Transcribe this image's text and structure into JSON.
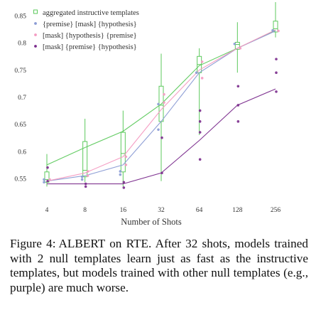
{
  "chart_data": {
    "type": "scatter",
    "title": "",
    "xlabel": "Number of Shots",
    "ylabel": "",
    "x_scale": "log2",
    "x_ticks": [
      "4",
      "8",
      "16",
      "32",
      "64",
      "128",
      "256"
    ],
    "y_ticks": [
      "0.55",
      "0.6",
      "0.65",
      "0.7",
      "0.75",
      "0.8",
      "0.85"
    ],
    "ylim": [
      0.525,
      0.858
    ],
    "grid": false,
    "legend_position": "top-left",
    "series": [
      {
        "name": "aggregated instructive templates",
        "color": "#5cc95c",
        "style": "box",
        "boxes": [
          {
            "x": 4,
            "low": 0.535,
            "q1": 0.543,
            "median": 0.548,
            "q3": 0.562,
            "high": 0.595
          },
          {
            "x": 8,
            "low": 0.543,
            "q1": 0.553,
            "median": 0.565,
            "q3": 0.618,
            "high": 0.66
          },
          {
            "x": 16,
            "low": 0.535,
            "q1": 0.562,
            "median": 0.596,
            "q3": 0.635,
            "high": 0.675
          },
          {
            "x": 32,
            "low": 0.545,
            "q1": 0.655,
            "median": 0.685,
            "q3": 0.72,
            "high": 0.78
          },
          {
            "x": 64,
            "low": 0.63,
            "q1": 0.745,
            "median": 0.76,
            "q3": 0.775,
            "high": 0.79
          },
          {
            "x": 128,
            "low": 0.745,
            "q1": 0.788,
            "median": 0.797,
            "q3": 0.801,
            "high": 0.838
          },
          {
            "x": 256,
            "low": 0.81,
            "q1": 0.82,
            "median": 0.826,
            "q3": 0.84,
            "high": 0.875
          }
        ],
        "trend": [
          {
            "x": 4,
            "y": 0.575
          },
          {
            "x": 8,
            "y": 0.607
          },
          {
            "x": 16,
            "y": 0.637
          },
          {
            "x": 32,
            "y": 0.687
          },
          {
            "x": 64,
            "y": 0.758
          },
          {
            "x": 128,
            "y": 0.79
          },
          {
            "x": 256,
            "y": 0.823
          }
        ]
      },
      {
        "name": "{premise} [mask] {hypothesis}",
        "color": "#8a9bd4",
        "style": "points",
        "points": [
          {
            "x": 4,
            "y": 0.548
          },
          {
            "x": 4,
            "y": 0.543
          },
          {
            "x": 8,
            "y": 0.553
          },
          {
            "x": 8,
            "y": 0.548
          },
          {
            "x": 16,
            "y": 0.563
          },
          {
            "x": 16,
            "y": 0.557
          },
          {
            "x": 32,
            "y": 0.64
          },
          {
            "x": 32,
            "y": 0.687
          },
          {
            "x": 64,
            "y": 0.745
          },
          {
            "x": 128,
            "y": 0.798
          },
          {
            "x": 256,
            "y": 0.823
          }
        ],
        "trend": [
          {
            "x": 4,
            "y": 0.545
          },
          {
            "x": 8,
            "y": 0.555
          },
          {
            "x": 16,
            "y": 0.575
          },
          {
            "x": 32,
            "y": 0.655
          },
          {
            "x": 64,
            "y": 0.745
          },
          {
            "x": 128,
            "y": 0.79
          },
          {
            "x": 256,
            "y": 0.822
          }
        ]
      },
      {
        "name": "[mask] {hypothesis} {premise}",
        "color": "#f49ac1",
        "style": "points",
        "points": [
          {
            "x": 4,
            "y": 0.548
          },
          {
            "x": 8,
            "y": 0.555
          },
          {
            "x": 8,
            "y": 0.563
          },
          {
            "x": 16,
            "y": 0.59
          },
          {
            "x": 16,
            "y": 0.575
          },
          {
            "x": 32,
            "y": 0.69
          },
          {
            "x": 32,
            "y": 0.705
          },
          {
            "x": 64,
            "y": 0.735
          },
          {
            "x": 64,
            "y": 0.765
          },
          {
            "x": 128,
            "y": 0.79
          },
          {
            "x": 256,
            "y": 0.822
          }
        ],
        "trend": [
          {
            "x": 4,
            "y": 0.545
          },
          {
            "x": 8,
            "y": 0.56
          },
          {
            "x": 16,
            "y": 0.59
          },
          {
            "x": 32,
            "y": 0.677
          },
          {
            "x": 64,
            "y": 0.75
          },
          {
            "x": 128,
            "y": 0.79
          },
          {
            "x": 256,
            "y": 0.824
          }
        ]
      },
      {
        "name": "[mask] {premise} {hypothesis}",
        "color": "#7a2b8c",
        "style": "points",
        "points": [
          {
            "x": 4,
            "y": 0.57
          },
          {
            "x": 4,
            "y": 0.545
          },
          {
            "x": 8,
            "y": 0.54
          },
          {
            "x": 8,
            "y": 0.535
          },
          {
            "x": 16,
            "y": 0.543
          },
          {
            "x": 16,
            "y": 0.533
          },
          {
            "x": 32,
            "y": 0.56
          },
          {
            "x": 32,
            "y": 0.625
          },
          {
            "x": 64,
            "y": 0.675
          },
          {
            "x": 64,
            "y": 0.655
          },
          {
            "x": 64,
            "y": 0.635
          },
          {
            "x": 64,
            "y": 0.585
          },
          {
            "x": 128,
            "y": 0.72
          },
          {
            "x": 128,
            "y": 0.685
          },
          {
            "x": 128,
            "y": 0.655
          },
          {
            "x": 256,
            "y": 0.77
          },
          {
            "x": 256,
            "y": 0.745
          },
          {
            "x": 256,
            "y": 0.71
          }
        ],
        "trend": [
          {
            "x": 4,
            "y": 0.54
          },
          {
            "x": 8,
            "y": 0.54
          },
          {
            "x": 16,
            "y": 0.54
          },
          {
            "x": 32,
            "y": 0.56
          },
          {
            "x": 64,
            "y": 0.62
          },
          {
            "x": 128,
            "y": 0.685
          },
          {
            "x": 256,
            "y": 0.715
          }
        ]
      }
    ]
  },
  "caption": {
    "label": "Figure 4:",
    "text": "ALBERT on RTE. After 32 shots, models trained with 2 null templates learn just as fast as the instructive templates, but models trained with other null templates (e.g., purple) are much worse."
  }
}
